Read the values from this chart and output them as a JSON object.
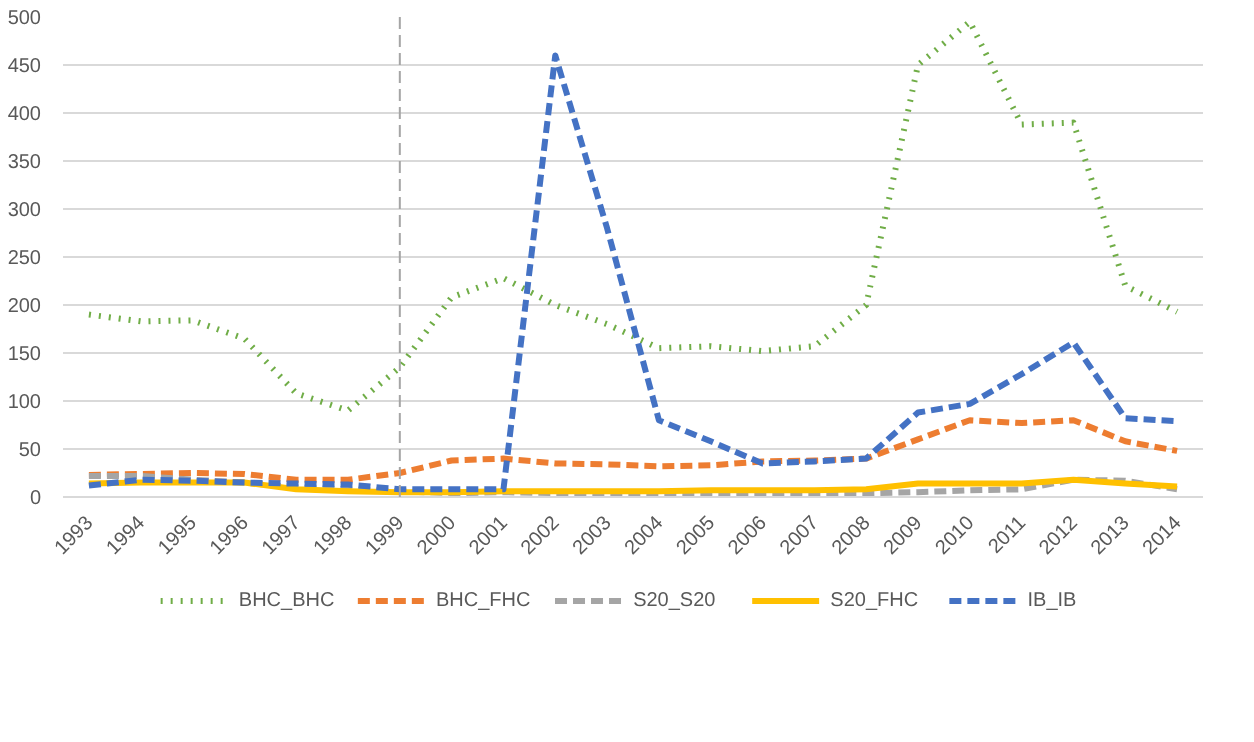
{
  "chart_data": {
    "type": "line",
    "categories": [
      "1993",
      "1994",
      "1995",
      "1996",
      "1997",
      "1998",
      "1999",
      "2000",
      "2001",
      "2002",
      "2003",
      "2004",
      "2005",
      "2006",
      "2007",
      "2008",
      "2009",
      "2010",
      "2011",
      "2012",
      "2013",
      "2014"
    ],
    "series": [
      {
        "name": "BHC_BHC",
        "color": "#70ad47",
        "line_style": "dotted",
        "values": [
          190,
          183,
          184,
          165,
          108,
          90,
          135,
          208,
          228,
          200,
          180,
          155,
          157,
          152,
          157,
          200,
          450,
          495,
          388,
          390,
          220,
          193
        ]
      },
      {
        "name": "BHC_FHC",
        "color": "#ed7d31",
        "line_style": "dashed",
        "values": [
          23,
          24,
          25,
          24,
          18,
          18,
          25,
          38,
          40,
          35,
          34,
          32,
          33,
          37,
          38,
          40,
          60,
          80,
          77,
          80,
          58,
          48
        ]
      },
      {
        "name": "S20_S20",
        "color": "#a5a5a5",
        "line_style": "dashed",
        "values": [
          22,
          22,
          18,
          15,
          10,
          8,
          6,
          4,
          5,
          4,
          4,
          4,
          4,
          4,
          4,
          4,
          5,
          7,
          8,
          18,
          17,
          8
        ]
      },
      {
        "name": "S20_FHC",
        "color": "#ffc000",
        "line_style": "solid",
        "values": [
          14,
          15,
          15,
          15,
          8,
          6,
          5,
          5,
          6,
          6,
          6,
          6,
          7,
          7,
          7,
          8,
          14,
          14,
          14,
          18,
          14,
          11
        ]
      },
      {
        "name": "IB_IB",
        "color": "#4472c4",
        "line_style": "dashed",
        "values": [
          12,
          18,
          17,
          15,
          14,
          13,
          8,
          8,
          8,
          460,
          280,
          80,
          58,
          35,
          37,
          40,
          88,
          97,
          128,
          161,
          82,
          79
        ]
      }
    ],
    "ylim": [
      0,
      500
    ],
    "yticks": [
      0,
      50,
      100,
      150,
      200,
      250,
      300,
      350,
      400,
      450,
      500
    ],
    "grid": "y",
    "legend": "bottom",
    "ref_lines": [
      {
        "axis": "x",
        "value": "1999",
        "color": "#a5a5a5",
        "line_style": "dashed"
      }
    ]
  }
}
